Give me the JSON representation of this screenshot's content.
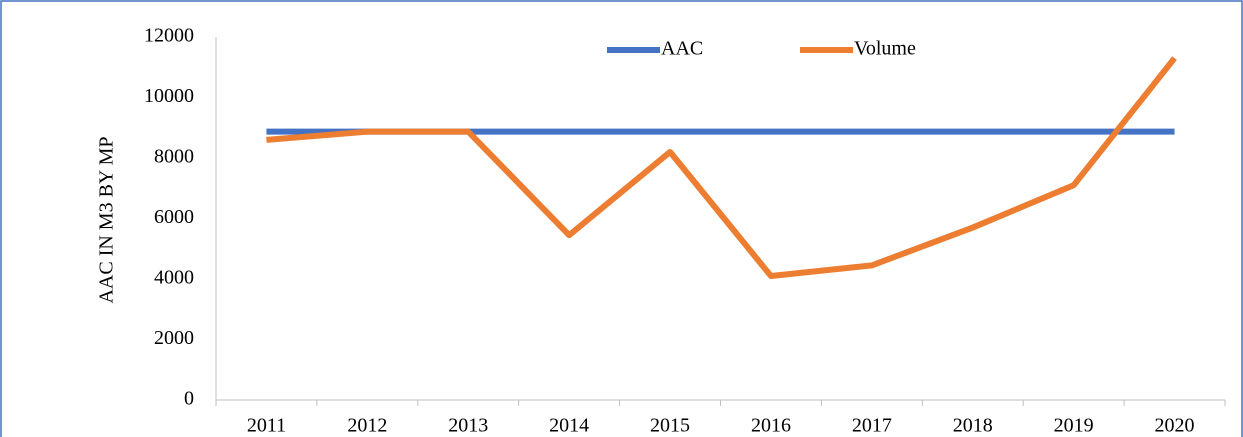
{
  "chart_data": {
    "type": "line",
    "y_label": "AAC IN M3 BY MP",
    "categories": [
      "2011",
      "2012",
      "2013",
      "2014",
      "2015",
      "2016",
      "2017",
      "2018",
      "2019",
      "2020"
    ],
    "series": [
      {
        "name": "AAC",
        "color": "#4472c4",
        "values": [
          8870,
          8870,
          8870,
          8870,
          8870,
          8870,
          8870,
          8870,
          8870,
          8870
        ]
      },
      {
        "name": "Volume",
        "color": "#ed7d31",
        "values": [
          8600,
          8870,
          8870,
          5450,
          8200,
          4100,
          4450,
          5700,
          7100,
          11300
        ]
      }
    ],
    "ylim": [
      0,
      12000
    ],
    "yticks": [
      0,
      2000,
      4000,
      6000,
      8000,
      10000,
      12000
    ],
    "grid": false,
    "legend": "top"
  }
}
